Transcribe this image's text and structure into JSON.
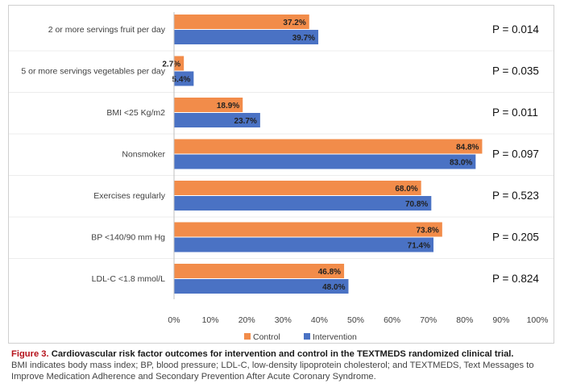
{
  "chart_data": {
    "type": "bar",
    "orientation": "horizontal",
    "categories": [
      "2 or more servings fruit per day",
      "5 or more servings vegetables per day",
      "BMI <25 Kg/m2",
      "Nonsmoker",
      "Exercises regularly",
      "BP <140/90 mm Hg",
      "LDL-C <1.8 mmol/L"
    ],
    "series": [
      {
        "name": "Control",
        "color": "#f28c4a",
        "values": [
          37.2,
          2.7,
          18.9,
          84.8,
          68.0,
          73.8,
          46.8
        ],
        "labels": [
          "37.2%",
          "2.7%",
          "18.9%",
          "84.8%",
          "68.0%",
          "73.8%",
          "46.8%"
        ]
      },
      {
        "name": "Intervention",
        "color": "#4a72c4",
        "values": [
          39.7,
          5.4,
          23.7,
          83.0,
          70.8,
          71.4,
          48.0
        ],
        "labels": [
          "39.7%",
          "5.4%",
          "23.7%",
          "83.0%",
          "70.8%",
          "71.4%",
          "48.0%"
        ]
      }
    ],
    "p_values": [
      "P = 0.014",
      "P = 0.035",
      "P = 0.011",
      "P = 0.097",
      "P = 0.523",
      "P = 0.205",
      "P = 0.824"
    ],
    "xlim": [
      0,
      100
    ],
    "xticks": [
      0,
      10,
      20,
      30,
      40,
      50,
      60,
      70,
      80,
      90,
      100
    ],
    "xtick_labels": [
      "0%",
      "10%",
      "20%",
      "30%",
      "40%",
      "50%",
      "60%",
      "70%",
      "80%",
      "90%",
      "100%"
    ],
    "legend_position": "bottom",
    "grid": false
  },
  "caption": {
    "label": "Figure 3.",
    "title": "Cardiovascular risk factor outcomes for intervention and control in the TEXTMEDS randomized clinical trial.",
    "notes": "BMI indicates body mass index; BP, blood pressure; LDL-C, low-density lipoprotein cholesterol; and TEXTMEDS, Text Messages to Improve Medication Adherence and Secondary Prevention After Acute Coronary Syndrome."
  }
}
